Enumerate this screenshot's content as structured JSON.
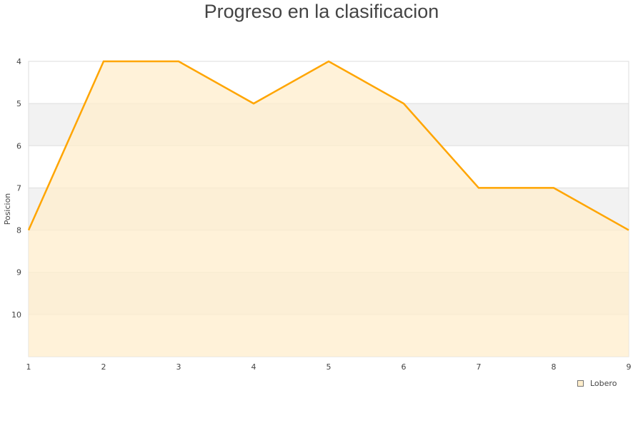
{
  "chart_data": {
    "type": "area",
    "title": "Progreso en la clasificacion",
    "xlabel": "",
    "ylabel": "Posicion",
    "x": [
      1,
      2,
      3,
      4,
      5,
      6,
      7,
      8,
      9
    ],
    "series": [
      {
        "name": "Lobero",
        "values": [
          8,
          4,
          4,
          5,
          4,
          5,
          7,
          7,
          8
        ],
        "color": "#ffa500",
        "fill": "#ffeecc"
      }
    ],
    "ylim": [
      4,
      11
    ],
    "y_reversed": true,
    "yticks": [
      4,
      5,
      6,
      7,
      8,
      9,
      10
    ],
    "xticks": [
      1,
      2,
      3,
      4,
      5,
      6,
      7,
      8,
      9
    ],
    "grid": true,
    "legend": "bottom-right"
  }
}
